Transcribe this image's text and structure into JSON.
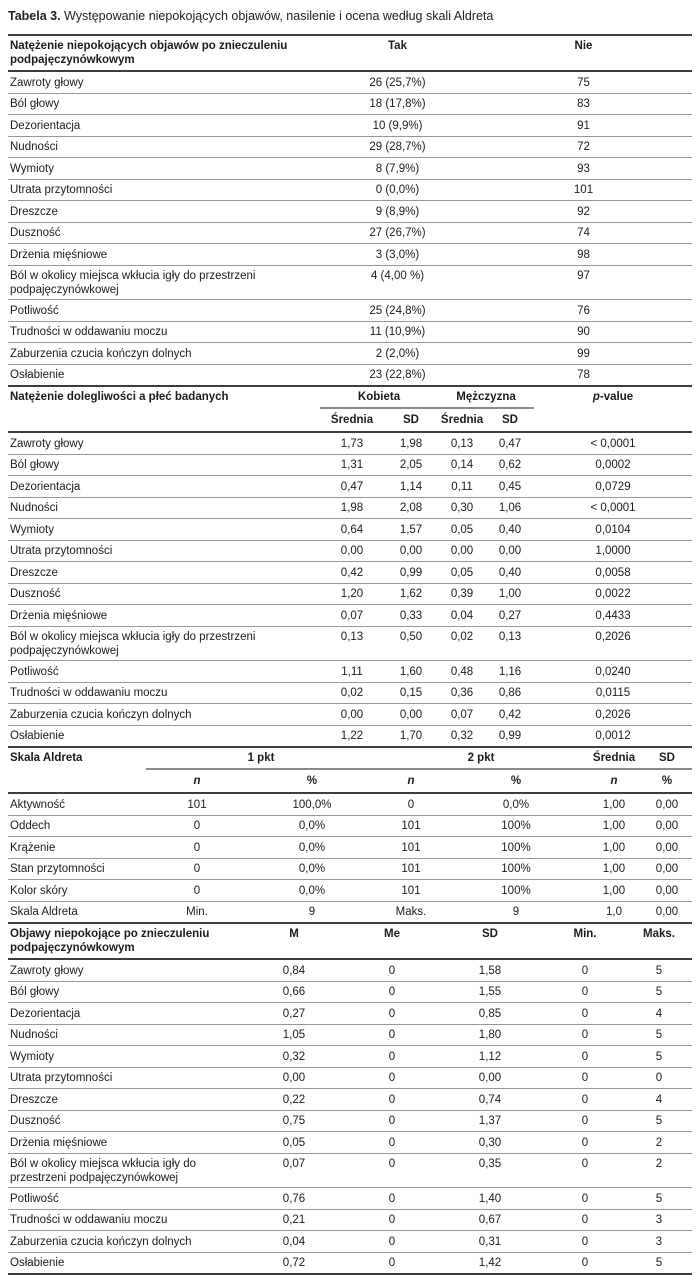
{
  "title": {
    "bold": "Tabela 3.",
    "text": " Występowanie niepokojących objawów, nasilenie i ocena według skali Aldreta"
  },
  "colors": {
    "background": "#ffffff",
    "text": "#1c1c1c",
    "rule_dark": "#3d3d3d",
    "rule_light": "#979797"
  },
  "section1": {
    "header": {
      "label": "Natężenie niepokojących objawów po znieczuleniu podpajęczynówkowym",
      "tak": "Tak",
      "nie": "Nie"
    },
    "rows": [
      {
        "label": "Zawroty głowy",
        "values": [
          "26 (25,7%)",
          "75"
        ]
      },
      {
        "label": "Ból głowy",
        "values": [
          "18 (17,8%)",
          "83"
        ]
      },
      {
        "label": "Dezorientacja",
        "values": [
          "10 (9,9%)",
          "91"
        ]
      },
      {
        "label": "Nudności",
        "values": [
          "29 (28,7%)",
          "72"
        ]
      },
      {
        "label": "Wymioty",
        "values": [
          "8 (7,9%)",
          "93"
        ]
      },
      {
        "label": "Utrata przytomności",
        "values": [
          "0 (0,0%)",
          "101"
        ]
      },
      {
        "label": "Dreszcze",
        "values": [
          "9 (8,9%)",
          "92"
        ]
      },
      {
        "label": "Duszność",
        "values": [
          "27 (26,7%)",
          "74"
        ]
      },
      {
        "label": "Drżenia mięśniowe",
        "values": [
          "3 (3,0%)",
          "98"
        ]
      },
      {
        "label": "Ból w okolicy miejsca wkłucia igły do przestrzeni podpajęczynówkowej",
        "values": [
          "4 (4,00 %)",
          "97"
        ]
      },
      {
        "label": "Potliwość",
        "values": [
          "25 (24,8%)",
          "76"
        ]
      },
      {
        "label": "Trudności w oddawaniu moczu",
        "values": [
          "11 (10,9%)",
          "90"
        ]
      },
      {
        "label": "Zaburzenia czucia kończyn dolnych",
        "values": [
          "2 (2,0%)",
          "99"
        ]
      },
      {
        "label": "Osłabienie",
        "values": [
          "23 (22,8%)",
          "78"
        ]
      }
    ]
  },
  "section2": {
    "header": {
      "label": "Natężenie dolegliwości a płeć badanych",
      "group1": "Kobieta",
      "group2": "Mężczyzna",
      "p_italic": "p",
      "p_rest": "-value",
      "sub": [
        "Średnia",
        "SD",
        "Średnia",
        "SD"
      ]
    },
    "rows": [
      {
        "label": "Zawroty głowy",
        "values": [
          "1,73",
          "1,98",
          "0,13",
          "0,47",
          "< 0,0001"
        ]
      },
      {
        "label": "Ból głowy",
        "values": [
          "1,31",
          "2,05",
          "0,14",
          "0,62",
          "0,0002"
        ]
      },
      {
        "label": "Dezorientacja",
        "values": [
          "0,47",
          "1,14",
          "0,11",
          "0,45",
          "0,0729"
        ]
      },
      {
        "label": "Nudności",
        "values": [
          "1,98",
          "2,08",
          "0,30",
          "1,06",
          "< 0,0001"
        ]
      },
      {
        "label": "Wymioty",
        "values": [
          "0,64",
          "1,57",
          "0,05",
          "0,40",
          "0,0104"
        ]
      },
      {
        "label": "Utrata przytomności",
        "values": [
          "0,00",
          "0,00",
          "0,00",
          "0,00",
          "1,0000"
        ]
      },
      {
        "label": "Dreszcze",
        "values": [
          "0,42",
          "0,99",
          "0,05",
          "0,40",
          "0,0058"
        ]
      },
      {
        "label": "Duszność",
        "values": [
          "1,20",
          "1,62",
          "0,39",
          "1,00",
          "0,0022"
        ]
      },
      {
        "label": "Drżenia mięśniowe",
        "values": [
          "0,07",
          "0,33",
          "0,04",
          "0,27",
          "0,4433"
        ]
      },
      {
        "label": "Ból w okolicy miejsca wkłucia igły do przestrzeni podpajęczynówkowej",
        "values": [
          "0,13",
          "0,50",
          "0,02",
          "0,13",
          "0,2026"
        ]
      },
      {
        "label": "Potliwość",
        "values": [
          "1,11",
          "1,60",
          "0,48",
          "1,16",
          "0,0240"
        ]
      },
      {
        "label": "Trudności w oddawaniu moczu",
        "values": [
          "0,02",
          "0,15",
          "0,36",
          "0,86",
          "0,0115"
        ]
      },
      {
        "label": "Zaburzenia czucia kończyn dolnych",
        "values": [
          "0,00",
          "0,00",
          "0,07",
          "0,42",
          "0,2026"
        ]
      },
      {
        "label": "Osłabienie",
        "values": [
          "1,22",
          "1,70",
          "0,32",
          "0,99",
          "0,0012"
        ]
      }
    ]
  },
  "section3": {
    "header": {
      "label": "Skala Aldreta",
      "group1": "1 pkt",
      "group2": "2 pkt",
      "group3": "Średnia",
      "group4": "SD",
      "sub": [
        "n",
        "%",
        "n",
        "%",
        "n",
        "%"
      ]
    },
    "rows": [
      {
        "label": "Aktywność",
        "values": [
          "101",
          "100,0%",
          "0",
          "0,0%",
          "1,00",
          "0,00"
        ]
      },
      {
        "label": "Oddech",
        "values": [
          "0",
          "0,0%",
          "101",
          "100%",
          "1,00",
          "0,00"
        ]
      },
      {
        "label": "Krążenie",
        "values": [
          "0",
          "0,0%",
          "101",
          "100%",
          "1,00",
          "0,00"
        ]
      },
      {
        "label": "Stan przytomności",
        "values": [
          "0",
          "0,0%",
          "101",
          "100%",
          "1,00",
          "0,00"
        ]
      },
      {
        "label": "Kolor skóry",
        "values": [
          "0",
          "0,0%",
          "101",
          "100%",
          "1,00",
          "0,00"
        ]
      },
      {
        "label": "Skala Aldreta",
        "values": [
          "Min.",
          "9",
          "Maks.",
          "9",
          "1,0",
          "0,00"
        ]
      }
    ]
  },
  "section4": {
    "header": {
      "label": "Objawy niepokojące po znieczuleniu podpajęczynówkowym",
      "cols": [
        "M",
        "Me",
        "SD",
        "Min.",
        "Maks."
      ]
    },
    "rows": [
      {
        "label": "Zawroty głowy",
        "values": [
          "0,84",
          "0",
          "1,58",
          "0",
          "5"
        ]
      },
      {
        "label": "Ból głowy",
        "values": [
          "0,66",
          "0",
          "1,55",
          "0",
          "5"
        ]
      },
      {
        "label": "Dezorientacja",
        "values": [
          "0,27",
          "0",
          "0,85",
          "0",
          "4"
        ]
      },
      {
        "label": "Nudności",
        "values": [
          "1,05",
          "0",
          "1,80",
          "0",
          "5"
        ]
      },
      {
        "label": "Wymioty",
        "values": [
          "0,32",
          "0",
          "1,12",
          "0",
          "5"
        ]
      },
      {
        "label": "Utrata przytomności",
        "values": [
          "0,00",
          "0",
          "0,00",
          "0",
          "0"
        ]
      },
      {
        "label": "Dreszcze",
        "values": [
          "0,22",
          "0",
          "0,74",
          "0",
          "4"
        ]
      },
      {
        "label": "Duszność",
        "values": [
          "0,75",
          "0",
          "1,37",
          "0",
          "5"
        ]
      },
      {
        "label": "Drżenia mięśniowe",
        "values": [
          "0,05",
          "0",
          "0,30",
          "0",
          "2"
        ]
      },
      {
        "label": "Ból w okolicy miejsca wkłucia igły do przestrzeni podpajęczynówkowej",
        "values": [
          "0,07",
          "0",
          "0,35",
          "0",
          "2"
        ]
      },
      {
        "label": "Potliwość",
        "values": [
          "0,76",
          "0",
          "1,40",
          "0",
          "5"
        ]
      },
      {
        "label": "Trudności w oddawaniu moczu",
        "values": [
          "0,21",
          "0",
          "0,67",
          "0",
          "3"
        ]
      },
      {
        "label": "Zaburzenia czucia kończyn dolnych",
        "values": [
          "0,04",
          "0",
          "0,31",
          "0",
          "3"
        ]
      },
      {
        "label": "Osłabienie",
        "values": [
          "0,72",
          "0",
          "1,42",
          "0",
          "5"
        ]
      }
    ]
  }
}
